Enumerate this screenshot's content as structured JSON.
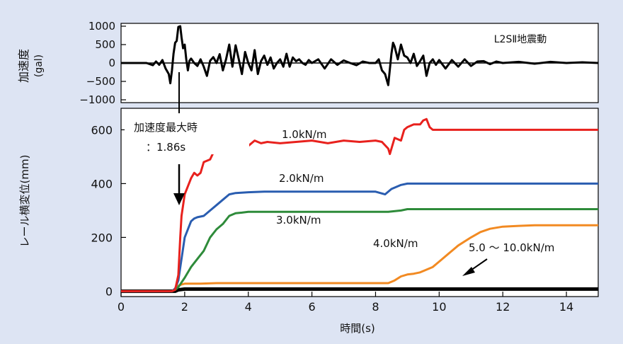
{
  "chart_data": [
    {
      "type": "line",
      "ylabel": "加速度\n(gal)",
      "xlim": [
        0,
        15
      ],
      "ylim": [
        -1000,
        1000
      ],
      "yticks": [
        1000,
        500,
        0,
        -500,
        -1000
      ],
      "ytick_labels": [
        "1000",
        "500",
        "0",
        "−500",
        "−1000"
      ],
      "annotation": "L2SⅡ地震動",
      "grid": false,
      "series": [
        {
          "name": "L2SⅡ地震動",
          "color": "#000000",
          "x": [
            0,
            0.8,
            1.0,
            1.1,
            1.2,
            1.3,
            1.4,
            1.5,
            1.55,
            1.6,
            1.65,
            1.7,
            1.75,
            1.8,
            1.86,
            1.9,
            1.95,
            2.0,
            2.05,
            2.1,
            2.15,
            2.2,
            2.3,
            2.4,
            2.5,
            2.6,
            2.7,
            2.8,
            2.9,
            3.0,
            3.1,
            3.2,
            3.3,
            3.4,
            3.5,
            3.6,
            3.7,
            3.8,
            3.9,
            4.0,
            4.1,
            4.2,
            4.3,
            4.4,
            4.5,
            4.6,
            4.7,
            4.8,
            4.9,
            5.0,
            5.1,
            5.2,
            5.3,
            5.4,
            5.5,
            5.6,
            5.7,
            5.8,
            5.9,
            6.0,
            6.2,
            6.4,
            6.6,
            6.8,
            7.0,
            7.2,
            7.4,
            7.6,
            7.8,
            8.0,
            8.1,
            8.2,
            8.3,
            8.4,
            8.5,
            8.55,
            8.6,
            8.7,
            8.8,
            8.9,
            9.0,
            9.1,
            9.2,
            9.3,
            9.4,
            9.5,
            9.6,
            9.7,
            9.8,
            9.9,
            10.0,
            10.2,
            10.4,
            10.6,
            10.8,
            11.0,
            11.2,
            11.4,
            11.6,
            11.8,
            12.0,
            12.5,
            13.0,
            13.5,
            14.0,
            14.5,
            15.0
          ],
          "values": [
            0,
            0,
            -60,
            40,
            -50,
            80,
            -150,
            -300,
            -550,
            -200,
            250,
            550,
            600,
            980,
            1000,
            700,
            400,
            500,
            100,
            -200,
            60,
            120,
            0,
            -80,
            100,
            -100,
            -350,
            60,
            160,
            0,
            240,
            -200,
            100,
            500,
            -100,
            480,
            100,
            -300,
            300,
            0,
            -200,
            350,
            -300,
            50,
            200,
            -50,
            150,
            -150,
            0,
            100,
            -100,
            250,
            -100,
            150,
            50,
            100,
            0,
            -50,
            80,
            0,
            100,
            -150,
            100,
            -50,
            70,
            0,
            -60,
            40,
            0,
            0,
            100,
            -200,
            -300,
            -600,
            250,
            550,
            450,
            100,
            500,
            200,
            150,
            0,
            250,
            -80,
            50,
            200,
            -350,
            0,
            100,
            -50,
            80,
            -150,
            80,
            -100,
            100,
            -80,
            40,
            50,
            -30,
            40,
            0,
            30,
            -20,
            30,
            0,
            20,
            0
          ]
        }
      ]
    },
    {
      "type": "line",
      "xlabel": "時間(s)",
      "ylabel": "レール横変位(mm)",
      "xlim": [
        0,
        15
      ],
      "ylim": [
        -20,
        680
      ],
      "xticks": [
        0,
        2,
        4,
        6,
        8,
        10,
        12,
        14
      ],
      "yticks": [
        0,
        200,
        400,
        600
      ],
      "grid": false,
      "annotations": [
        {
          "text": "加速度最大時"
        },
        {
          "text": "：1.86s"
        }
      ],
      "series": [
        {
          "name": "1.0kN/m",
          "color": "#e8211d",
          "x": [
            0,
            1.6,
            1.7,
            1.8,
            1.86,
            1.9,
            2.0,
            2.1,
            2.2,
            2.3,
            2.4,
            2.5,
            2.6,
            2.8,
            3.0,
            3.2,
            3.4,
            3.5,
            3.6,
            3.8,
            4.0,
            4.2,
            4.4,
            4.6,
            5.0,
            5.5,
            6.0,
            6.5,
            7.0,
            7.5,
            8.0,
            8.2,
            8.4,
            8.45,
            8.6,
            8.8,
            8.9,
            9.0,
            9.2,
            9.4,
            9.5,
            9.6,
            9.7,
            9.8,
            10.0,
            10.5,
            11.0,
            12.0,
            13.0,
            14.0,
            15.0
          ],
          "values": [
            0,
            0,
            5,
            60,
            200,
            280,
            360,
            390,
            420,
            440,
            430,
            440,
            480,
            490,
            540,
            570,
            585,
            580,
            560,
            560,
            540,
            560,
            550,
            555,
            550,
            555,
            560,
            550,
            560,
            555,
            560,
            555,
            530,
            510,
            570,
            560,
            600,
            610,
            620,
            620,
            635,
            640,
            610,
            600,
            600,
            600,
            600,
            600,
            600,
            600,
            600
          ]
        },
        {
          "name": "2.0kN/m",
          "color": "#2a5db0",
          "x": [
            0,
            1.6,
            1.7,
            1.8,
            1.9,
            2.0,
            2.1,
            2.2,
            2.3,
            2.4,
            2.6,
            2.8,
            3.0,
            3.2,
            3.4,
            3.6,
            4.0,
            4.5,
            5.0,
            6.0,
            7.0,
            8.0,
            8.3,
            8.5,
            8.8,
            9.0,
            9.5,
            10.0,
            11.0,
            12.0,
            13.0,
            14.0,
            15.0
          ],
          "values": [
            0,
            0,
            10,
            40,
            120,
            200,
            230,
            260,
            270,
            275,
            280,
            300,
            320,
            340,
            360,
            365,
            368,
            370,
            370,
            370,
            370,
            370,
            360,
            380,
            395,
            400,
            400,
            400,
            400,
            400,
            400,
            400,
            400
          ]
        },
        {
          "name": "3.0kN/m",
          "color": "#2e8b3a",
          "x": [
            0,
            1.6,
            1.7,
            1.8,
            2.0,
            2.2,
            2.4,
            2.6,
            2.8,
            3.0,
            3.2,
            3.4,
            3.6,
            3.8,
            4.0,
            5.0,
            6.0,
            7.0,
            8.0,
            8.4,
            8.8,
            9.0,
            9.5,
            10.0,
            11.0,
            12.0,
            13.0,
            14.0,
            15.0
          ],
          "values": [
            0,
            0,
            5,
            15,
            50,
            90,
            120,
            150,
            200,
            230,
            250,
            280,
            290,
            292,
            295,
            295,
            295,
            295,
            295,
            295,
            300,
            305,
            305,
            305,
            305,
            305,
            305,
            305,
            305
          ]
        },
        {
          "name": "4.0kN/m",
          "color": "#f28a22",
          "x": [
            0,
            1.6,
            1.7,
            1.8,
            1.9,
            2.0,
            2.5,
            3.0,
            4.0,
            5.0,
            6.0,
            7.0,
            8.0,
            8.4,
            8.6,
            8.8,
            9.0,
            9.2,
            9.4,
            9.6,
            9.8,
            10.0,
            10.3,
            10.6,
            11.0,
            11.3,
            11.6,
            12.0,
            12.5,
            13.0,
            14.0,
            15.0
          ],
          "values": [
            0,
            0,
            10,
            20,
            25,
            28,
            28,
            30,
            30,
            30,
            30,
            30,
            30,
            30,
            40,
            55,
            62,
            65,
            70,
            80,
            90,
            110,
            140,
            170,
            200,
            220,
            232,
            240,
            243,
            245,
            245,
            245
          ]
        },
        {
          "name": "5.0 〜 10.0kN/m",
          "color": "#000000",
          "x": [
            0,
            1.7,
            1.8,
            2.0,
            3.0,
            5.0,
            8.0,
            10.0,
            12.0,
            15.0
          ],
          "values": [
            0,
            0,
            5,
            8,
            8,
            8,
            8,
            8,
            8,
            8
          ]
        }
      ]
    }
  ]
}
